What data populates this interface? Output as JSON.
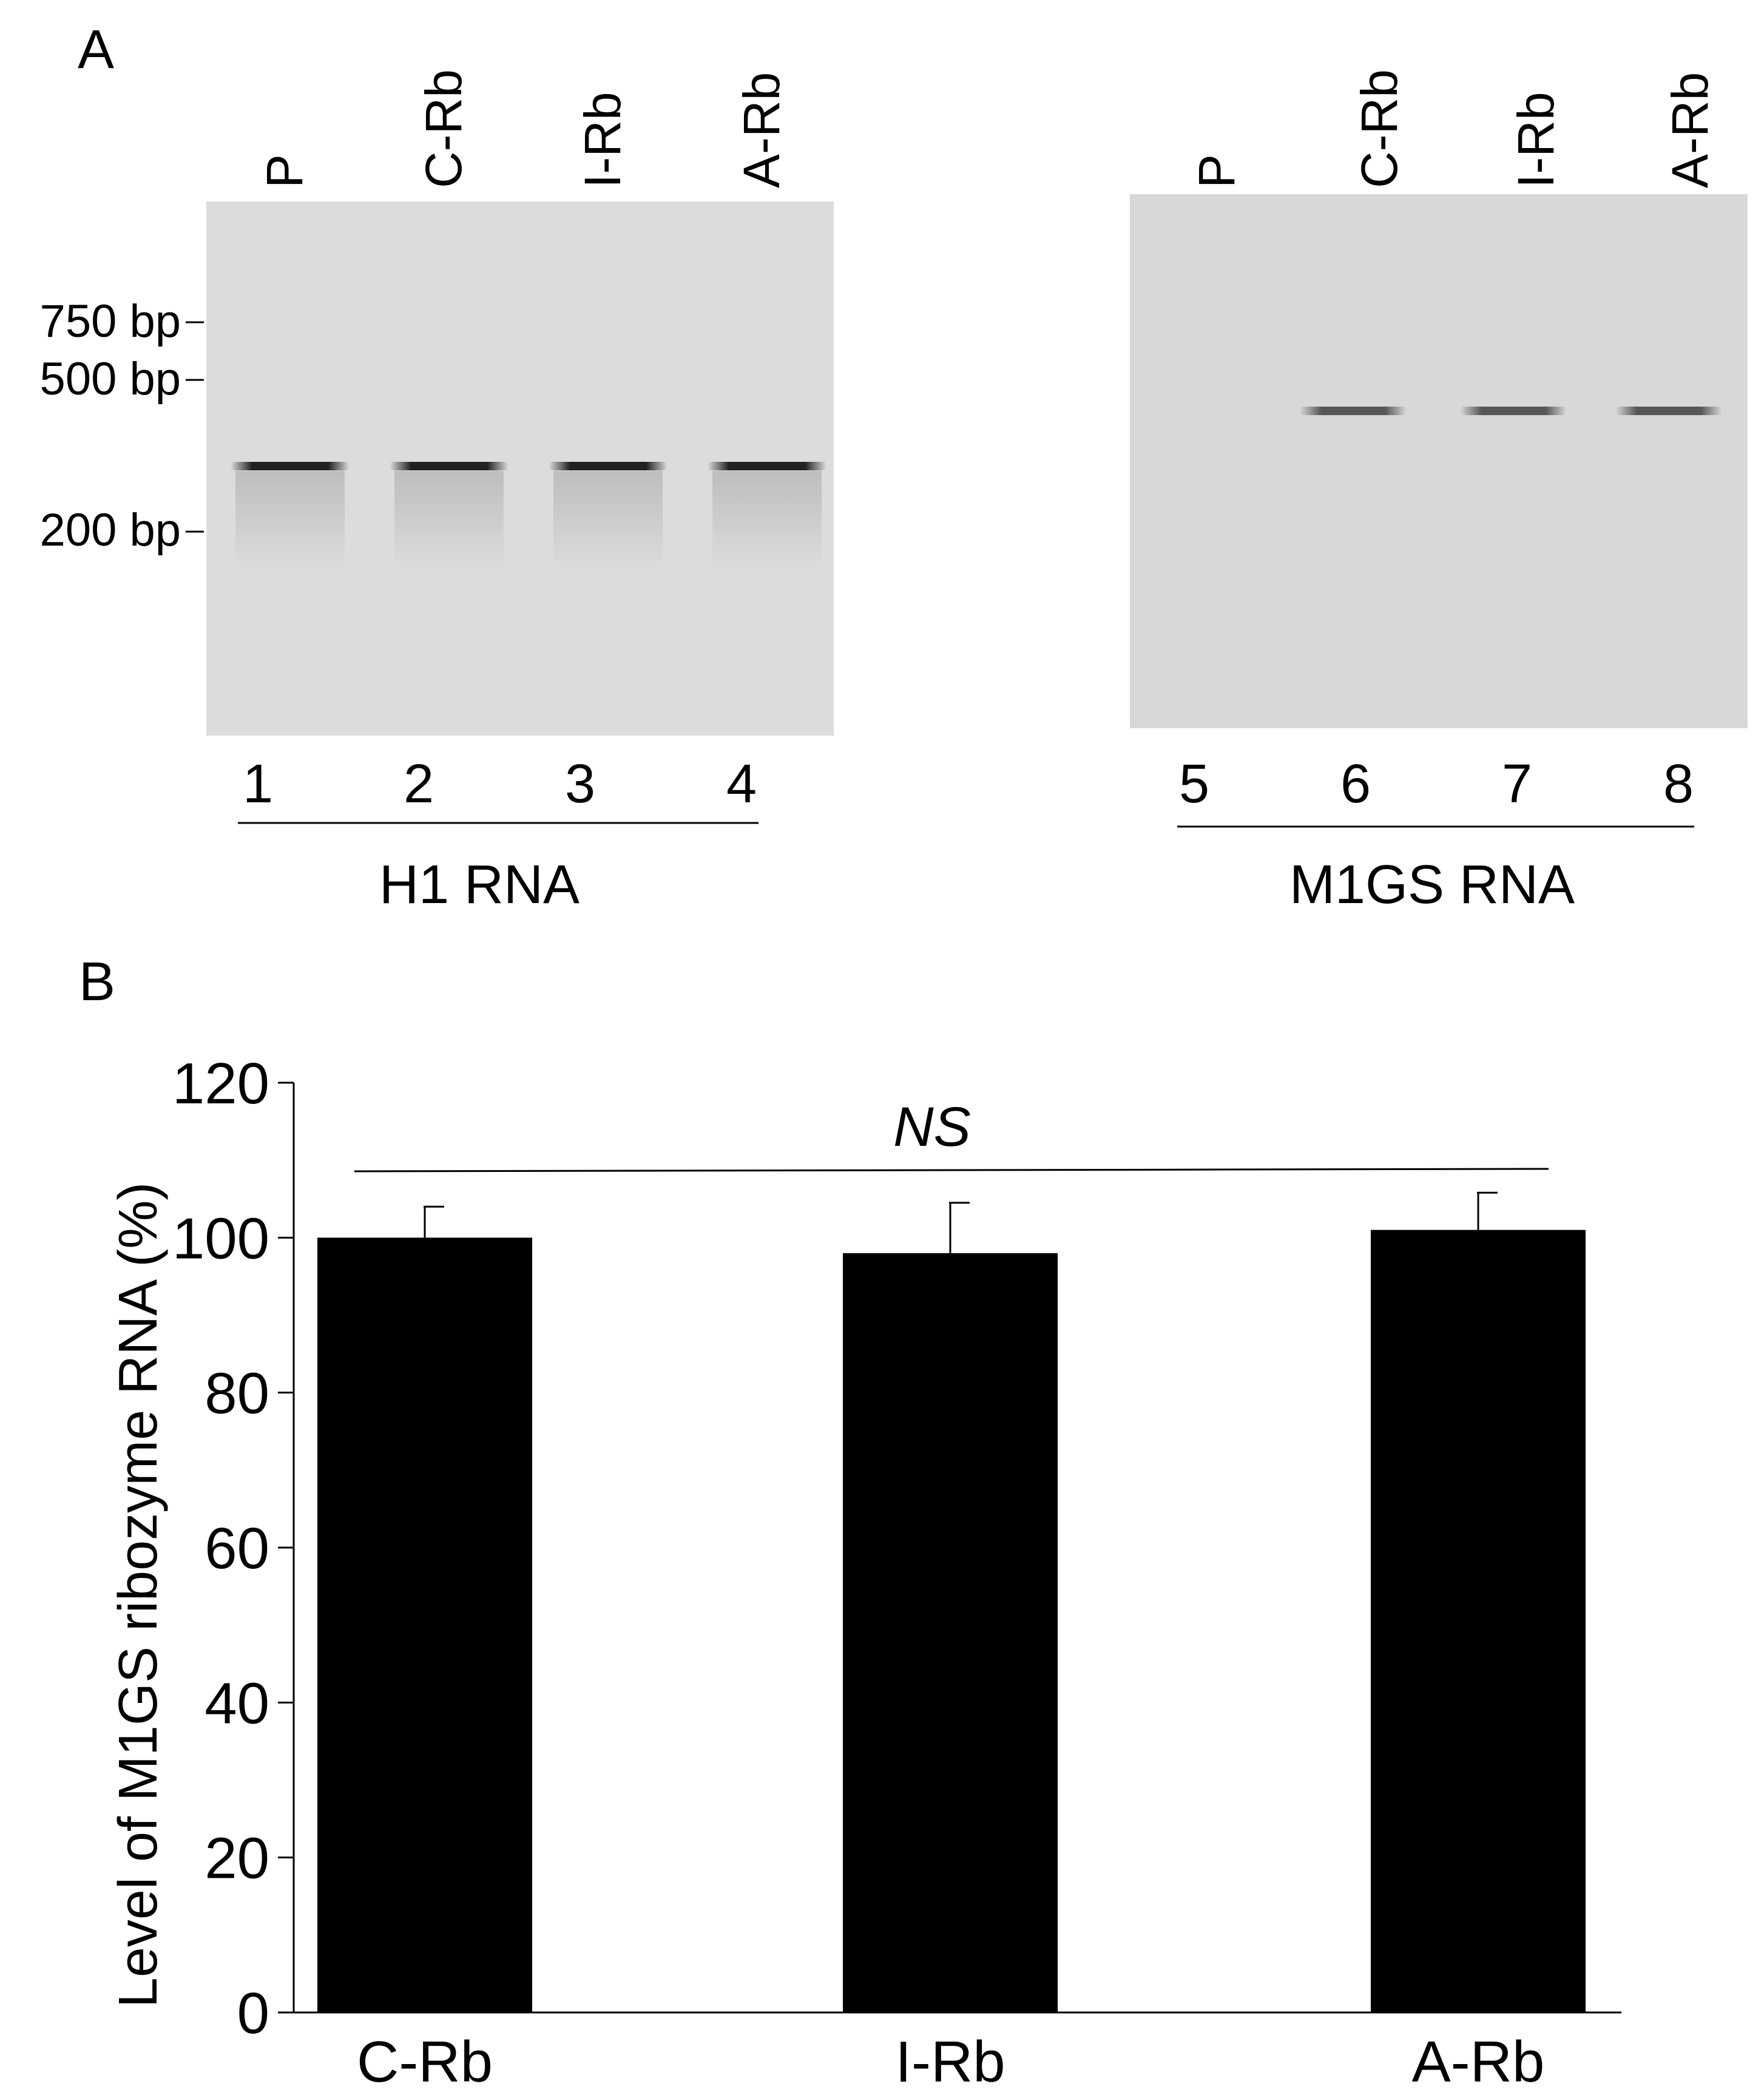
{
  "panel_a": {
    "letter": "A",
    "gels": [
      {
        "lane_headers": [
          "P",
          "C-Rb",
          "I-Rb",
          "A-Rb"
        ],
        "lane_numbers": [
          "1",
          "2",
          "3",
          "4"
        ],
        "title": "H1 RNA",
        "size_markers": [
          "750 bp",
          "500 bp",
          "200 bp"
        ],
        "band_lanes": [
          1,
          2,
          3,
          4
        ]
      },
      {
        "lane_headers": [
          "P",
          "C-Rb",
          "I-Rb",
          "A-Rb"
        ],
        "lane_numbers": [
          "5",
          "6",
          "7",
          "8"
        ],
        "title": "M1GS RNA",
        "band_lanes": [
          6,
          7,
          8
        ]
      }
    ]
  },
  "panel_b": {
    "letter": "B"
  },
  "chart_data": {
    "type": "bar",
    "categories": [
      "C-Rb",
      "I-Rb",
      "A-Rb"
    ],
    "values": [
      100,
      98,
      101
    ],
    "errors": [
      4,
      6.5,
      4.8
    ],
    "ylabel": "Level of  M1GS ribozyme RNA (%)",
    "xlabel": "",
    "ylim": [
      0,
      120
    ],
    "yticks": [
      0,
      20,
      40,
      60,
      80,
      100,
      120
    ],
    "annotation": "NS",
    "bar_color": "#000000",
    "grid": false
  }
}
